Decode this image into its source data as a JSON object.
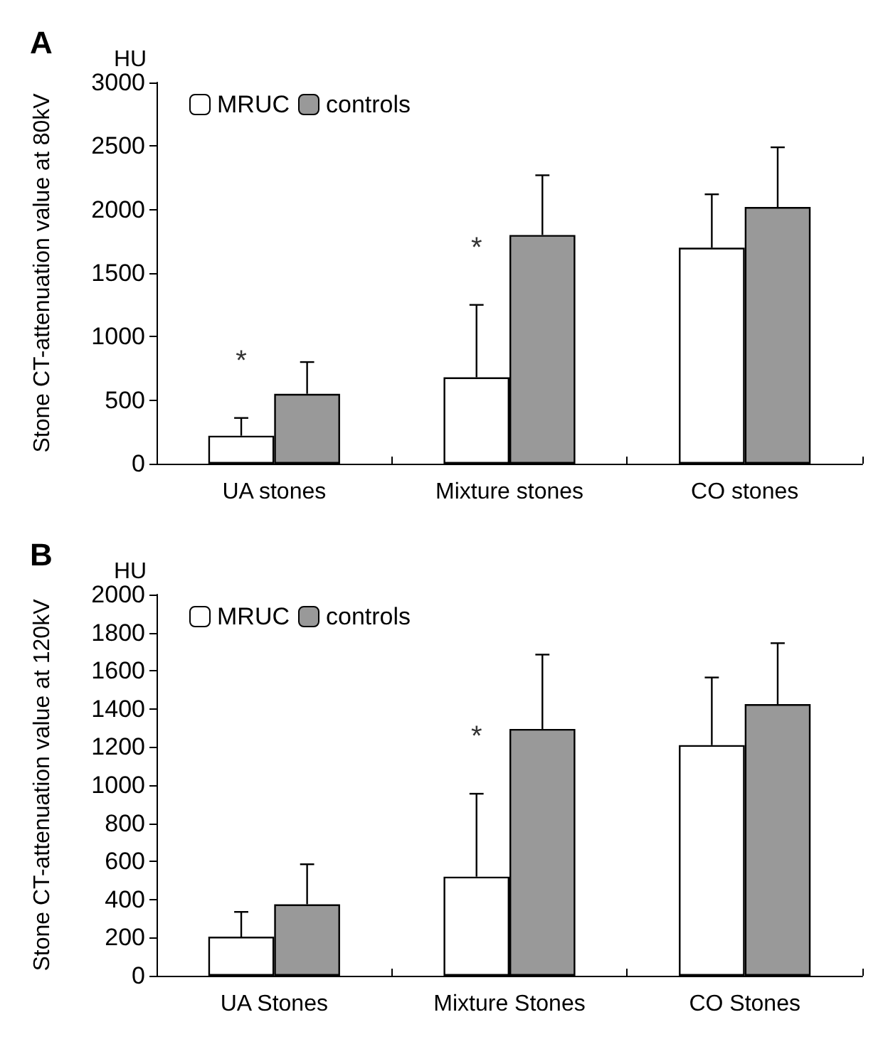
{
  "chart_data": [
    {
      "type": "bar",
      "title": "A",
      "ylabel": "Stone CT-attenuation value at 80kV",
      "categories": [
        "UA stones",
        "Mixture stones",
        "CO stones"
      ],
      "series": [
        {
          "name": "MRUC",
          "color": "#ffffff",
          "values": [
            220,
            680,
            1700
          ],
          "errors": [
            [
              220,
              360
            ],
            [
              680,
              1250
            ],
            [
              1700,
              2120
            ]
          ]
        },
        {
          "name": "controls",
          "color": "#999999",
          "values": [
            550,
            1800,
            2020
          ],
          "errors": [
            [
              550,
              800
            ],
            [
              1800,
              2270
            ],
            [
              2020,
              2490
            ]
          ]
        }
      ],
      "ylim": [
        0,
        3000
      ],
      "yticks": [
        0,
        500,
        1000,
        1500,
        2000,
        2500,
        3000
      ],
      "grid": false,
      "legend": "top left",
      "annotations": [
        "HU",
        {
          "text": "*",
          "x": "UA stones",
          "y": 360
        },
        {
          "text": "*",
          "x": "Mixture stones",
          "y": 1250
        }
      ]
    },
    {
      "type": "bar",
      "title": "B",
      "ylabel": "Stone CT-attenuation value at 120kV",
      "categories": [
        "UA Stones",
        "Mixture Stones",
        "CO Stones"
      ],
      "series": [
        {
          "name": "MRUC",
          "color": "#ffffff",
          "values": [
            205,
            520,
            1210
          ],
          "errors": [
            [
              205,
              335
            ],
            [
              520,
              955
            ],
            [
              1210,
              1565
            ]
          ]
        },
        {
          "name": "controls",
          "color": "#999999",
          "values": [
            375,
            1295,
            1425
          ],
          "errors": [
            [
              375,
              585
            ],
            [
              1295,
              1685
            ],
            [
              1425,
              1745
            ]
          ]
        }
      ],
      "ylim": [
        0,
        2000
      ],
      "yticks": [
        0,
        200,
        400,
        600,
        800,
        1000,
        1200,
        1400,
        1600,
        1800,
        2000
      ],
      "grid": false,
      "legend": "top left",
      "annotations": [
        "HU",
        {
          "text": "*",
          "x": "Mixture Stones",
          "y": 955
        }
      ]
    }
  ]
}
